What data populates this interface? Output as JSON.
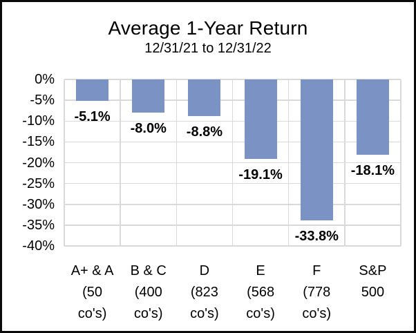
{
  "chart_data": {
    "type": "bar",
    "title": "Average 1-Year Return",
    "subtitle": "12/31/21 to 12/31/22",
    "categories": [
      [
        "A+ & A",
        "(50",
        "co's)"
      ],
      [
        "B & C",
        "(400",
        "co's)"
      ],
      [
        "D",
        "(823",
        "co's)"
      ],
      [
        "E",
        "(568",
        "co's)"
      ],
      [
        "F",
        "(778",
        "co's)"
      ],
      [
        "S&P",
        "500"
      ]
    ],
    "values": [
      -5.1,
      -8.0,
      -8.8,
      -19.1,
      -33.8,
      -18.1
    ],
    "data_labels": [
      "-5.1%",
      "-8.0%",
      "-8.8%",
      "-19.1%",
      "-33.8%",
      "-18.1%"
    ],
    "y_tick_values": [
      0,
      -5,
      -10,
      -15,
      -20,
      -25,
      -30,
      -35,
      -40
    ],
    "y_tick_labels": [
      "0%",
      "-5%",
      "-10%",
      "-15%",
      "-20%",
      "-25%",
      "-30%",
      "-35%",
      "-40%"
    ],
    "ylim": [
      -40,
      0
    ],
    "xlabel": "",
    "ylabel": "",
    "legend": "none",
    "grid": "both-major",
    "bar_color": "#7b93c4",
    "gridline_color": "#d9d9d9",
    "text_color": "#000000",
    "frame_color": "#0a0a0a",
    "background_color": "#ffffff"
  }
}
